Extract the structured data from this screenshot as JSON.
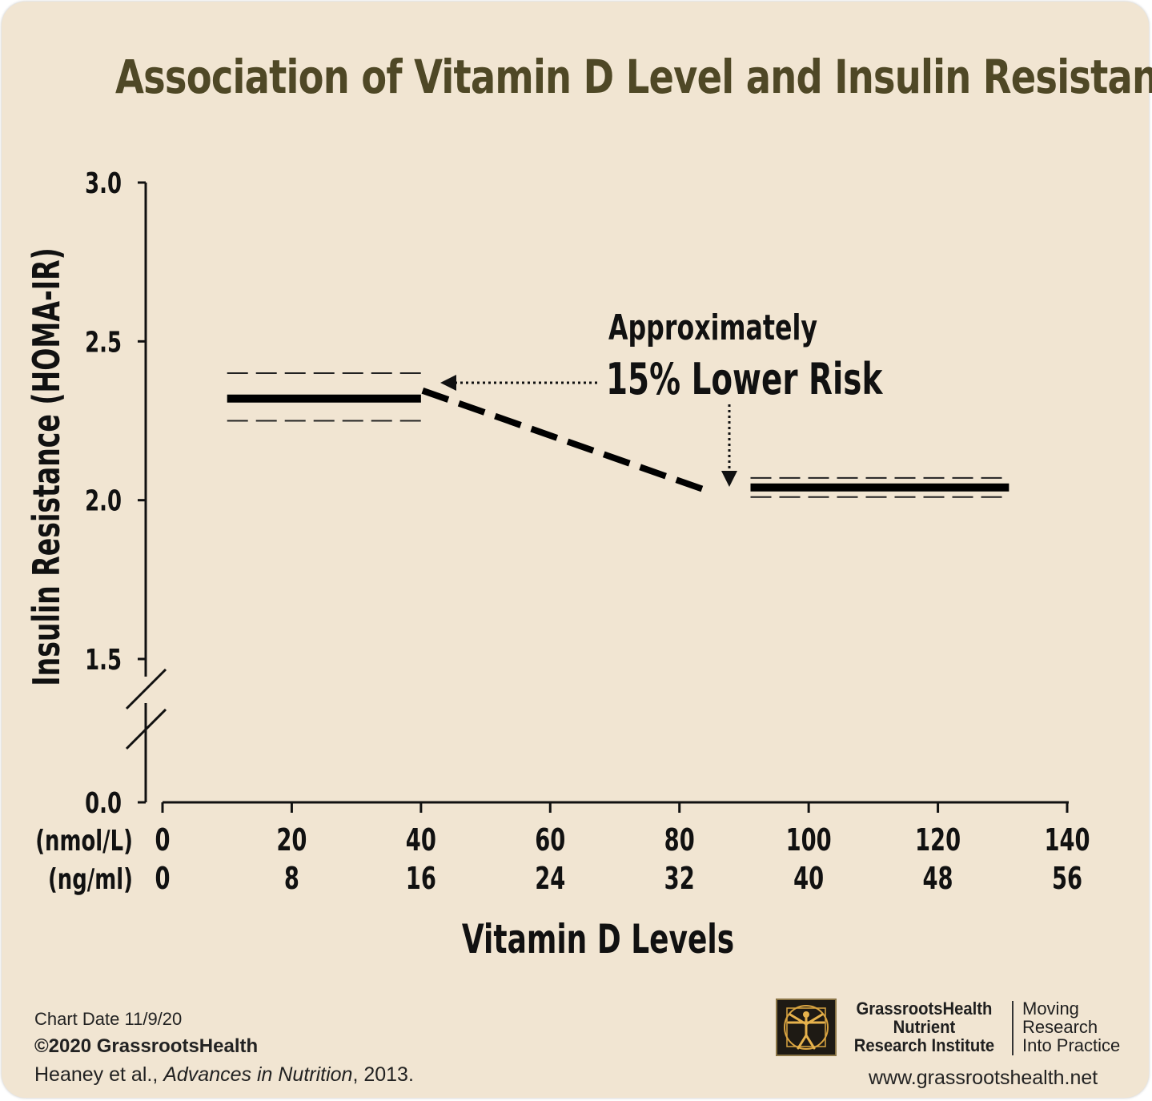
{
  "chart_data": {
    "type": "line",
    "title": "Association of Vitamin D Level and Insulin Resistance",
    "ylabel": "Insulin Resistance (HOMA-IR)",
    "xlabel": "Vitamin D Levels",
    "ylim": [
      0.0,
      3.0
    ],
    "y_axis_break": [
      0.0,
      1.5
    ],
    "y_ticks": [
      "3.0",
      "2.5",
      "2.0",
      "1.5",
      "0.0"
    ],
    "x_ticks_nmol": [
      "0",
      "20",
      "40",
      "60",
      "80",
      "100",
      "120",
      "140"
    ],
    "x_ticks_ng": [
      "0",
      "8",
      "16",
      "24",
      "32",
      "40",
      "48",
      "56"
    ],
    "x_unit_labels": [
      "(nmol/L)",
      "(ng/ml)"
    ],
    "xlim": [
      0,
      140
    ],
    "grid": false,
    "segments": [
      {
        "x": [
          10,
          40
        ],
        "y": 2.32,
        "ci_upper": 2.4,
        "ci_lower": 2.25
      },
      {
        "x": [
          91,
          131
        ],
        "y": 2.04,
        "ci_upper": 2.07,
        "ci_lower": 2.01
      }
    ],
    "trend": {
      "x": [
        40,
        85
      ],
      "y": [
        2.34,
        2.04
      ]
    },
    "annotation": {
      "line1": "Approximately",
      "line2": "15% Lower Risk"
    }
  },
  "footer": {
    "chart_date": "Chart Date 11/9/20",
    "copyright": "©2020 GrassrootsHealth",
    "citation_authors": "Heaney et al., ",
    "citation_journal": "Advances in Nutrition",
    "citation_year": ", 2013.",
    "org_line1": "GrassrootsHealth",
    "org_line2": "Nutrient",
    "org_line3": "Research Institute",
    "tagline1": "Moving",
    "tagline2": "Research",
    "tagline3": "Into Practice",
    "website": "www.grassrootshealth.net"
  }
}
